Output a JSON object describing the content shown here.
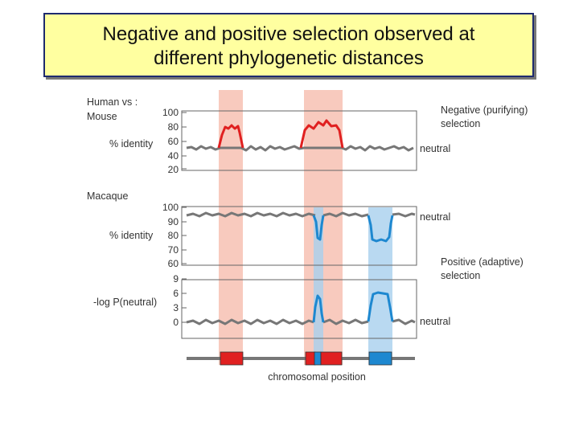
{
  "title": {
    "line1": "Negative and positive selection observed at",
    "line2": "different phylogenetic distances"
  },
  "panel_top": {
    "label_comparison_line1": "Human vs :",
    "label_comparison_line2": "Mouse",
    "y_label": "% identity",
    "ticks": [
      "100",
      "80",
      "60",
      "40",
      "20"
    ],
    "right_label_line1": "Negative (purifying)",
    "right_label_line2": "selection",
    "neutral_label": "neutral"
  },
  "panel_middle": {
    "label_comparison": "Macaque",
    "y_label": "% identity",
    "ticks": [
      "100",
      "90",
      "80",
      "70",
      "60"
    ],
    "neutral_label": "neutral",
    "right_label_line1": "Positive (adaptive)",
    "right_label_line2": "selection"
  },
  "panel_bottom": {
    "y_label": "-log P(neutral)",
    "ticks": [
      "9",
      "6",
      "3",
      "0"
    ],
    "neutral_label": "neutral"
  },
  "x_axis_label": "chromosomal position",
  "colors": {
    "negative": "#e02020",
    "positive": "#1e88d0",
    "neutral_line": "#777777",
    "red_band": "#f5b8a8",
    "blue_band": "#a8d0ee",
    "title_bg": "#ffffa0",
    "title_border": "#1e2a6e"
  }
}
